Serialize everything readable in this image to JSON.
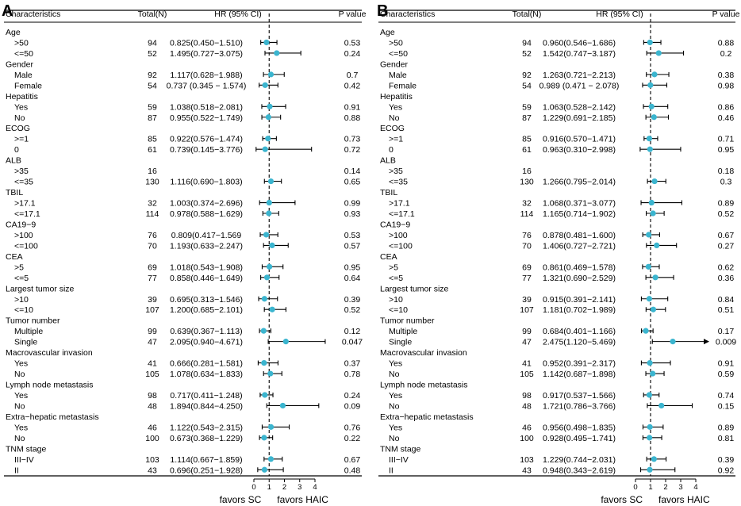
{
  "chart_data": [
    {
      "type": "forest",
      "panel_label": "A",
      "headers": {
        "characteristics": "Characteristics",
        "total": "Total(N)",
        "hr": "HR (95% CI)",
        "p": "P value"
      },
      "xlim": [
        0,
        4
      ],
      "reference_line": 1,
      "x_ticks": [
        {
          "value": 0,
          "label": "0"
        },
        {
          "value": 1,
          "label": "1"
        },
        {
          "value": 2,
          "label": "2"
        },
        {
          "value": 3,
          "label": "3"
        },
        {
          "value": 4,
          "label": "4"
        }
      ],
      "favor_left": "favors SC",
      "favor_right": "favors HAIC",
      "rows": [
        {
          "label": "Age",
          "header": true
        },
        {
          "label": ">50",
          "n": "94",
          "hr_text": "0.825(0.450−1.510)",
          "p": "0.53",
          "hr": 0.825,
          "lo": 0.45,
          "hi": 1.51
        },
        {
          "label": "<=50",
          "n": "52",
          "hr_text": "1.495(0.727−3.075)",
          "p": "0.24",
          "hr": 1.495,
          "lo": 0.727,
          "hi": 3.075
        },
        {
          "label": "Gender",
          "header": true
        },
        {
          "label": "Male",
          "n": "92",
          "hr_text": "1.117(0.628−1.988)",
          "p": "0.7",
          "hr": 1.117,
          "lo": 0.628,
          "hi": 1.988
        },
        {
          "label": "Female",
          "n": "54",
          "hr_text": "0.737 (0.345 − 1.574)",
          "p": "0.42",
          "hr": 0.737,
          "lo": 0.345,
          "hi": 1.574
        },
        {
          "label": "Hepatitis",
          "header": true
        },
        {
          "label": "Yes",
          "n": "59",
          "hr_text": "1.038(0.518−2.081)",
          "p": "0.91",
          "hr": 1.038,
          "lo": 0.518,
          "hi": 2.081
        },
        {
          "label": "No",
          "n": "87",
          "hr_text": "0.955(0.522−1.749)",
          "p": "0.88",
          "hr": 0.955,
          "lo": 0.522,
          "hi": 1.749
        },
        {
          "label": "ECOG",
          "header": true
        },
        {
          "label": ">=1",
          "n": "85",
          "hr_text": "0.922(0.576−1.474)",
          "p": "0.73",
          "hr": 0.922,
          "lo": 0.576,
          "hi": 1.474
        },
        {
          "label": "0",
          "n": "61",
          "hr_text": "0.739(0.145−3.776)",
          "p": "0.72",
          "hr": 0.739,
          "lo": 0.145,
          "hi": 3.776
        },
        {
          "label": "ALB",
          "header": true
        },
        {
          "label": ">35",
          "n": "16",
          "hr_text": "",
          "p": "0.14"
        },
        {
          "label": "<=35",
          "n": "130",
          "hr_text": "1.116(0.690−1.803)",
          "p": "0.65",
          "hr": 1.116,
          "lo": 0.69,
          "hi": 1.803
        },
        {
          "label": "TBIL",
          "header": true
        },
        {
          "label": ">17.1",
          "n": "32",
          "hr_text": "1.003(0.374−2.696)",
          "p": "0.99",
          "hr": 1.003,
          "lo": 0.374,
          "hi": 2.696
        },
        {
          "label": "<=17.1",
          "n": "114",
          "hr_text": "0.978(0.588−1.629)",
          "p": "0.93",
          "hr": 0.978,
          "lo": 0.588,
          "hi": 1.629
        },
        {
          "label": "CA19−9",
          "header": true
        },
        {
          "label": ">100",
          "n": "76",
          "hr_text": "0.809(0.417−1.569",
          "p": "0.53",
          "hr": 0.809,
          "lo": 0.417,
          "hi": 1.569
        },
        {
          "label": "<=100",
          "n": "70",
          "hr_text": "1.193(0.633−2.247)",
          "p": "0.57",
          "hr": 1.193,
          "lo": 0.633,
          "hi": 2.247
        },
        {
          "label": "CEA",
          "header": true
        },
        {
          "label": ">5",
          "n": "69",
          "hr_text": "1.018(0.543−1.908)",
          "p": "0.95",
          "hr": 1.018,
          "lo": 0.543,
          "hi": 1.908
        },
        {
          "label": "<=5",
          "n": "77",
          "hr_text": "0.858(0.446−1.649)",
          "p": "0.64",
          "hr": 0.858,
          "lo": 0.446,
          "hi": 1.649
        },
        {
          "label": "Largest tumor size",
          "header": true
        },
        {
          "label": ">10",
          "n": "39",
          "hr_text": "0.695(0.313−1.546)",
          "p": "0.39",
          "hr": 0.695,
          "lo": 0.313,
          "hi": 1.546
        },
        {
          "label": "<=10",
          "n": "107",
          "hr_text": "1.200(0.685−2.101)",
          "p": "0.52",
          "hr": 1.2,
          "lo": 0.685,
          "hi": 2.101
        },
        {
          "label": "Tumor number",
          "header": true
        },
        {
          "label": "Multiple",
          "n": "99",
          "hr_text": "0.639(0.367−1.113)",
          "p": "0.12",
          "hr": 0.639,
          "lo": 0.367,
          "hi": 1.113
        },
        {
          "label": "Single",
          "n": "47",
          "hr_text": "2.095(0.940−4.671)",
          "p": "0.047",
          "hr": 2.095,
          "lo": 0.94,
          "hi": 4.671
        },
        {
          "label": "Macrovascular invasion",
          "header": true
        },
        {
          "label": "Yes",
          "n": "41",
          "hr_text": "0.666(0.281−1.581)",
          "p": "0.37",
          "hr": 0.666,
          "lo": 0.281,
          "hi": 1.581
        },
        {
          "label": "No",
          "n": "105",
          "hr_text": "1.078(0.634−1.833)",
          "p": "0.78",
          "hr": 1.078,
          "lo": 0.634,
          "hi": 1.833
        },
        {
          "label": "Lymph node metastasis",
          "header": true
        },
        {
          "label": "Yes",
          "n": "98",
          "hr_text": "0.717(0.411−1.248)",
          "p": "0.24",
          "hr": 0.717,
          "lo": 0.411,
          "hi": 1.248
        },
        {
          "label": "No",
          "n": "48",
          "hr_text": "1.894(0.844−4.250)",
          "p": "0.09",
          "hr": 1.894,
          "lo": 0.844,
          "hi": 4.25
        },
        {
          "label": "Extra−hepatic metastasis",
          "header": true
        },
        {
          "label": "Yes",
          "n": "46",
          "hr_text": "1.122(0.543−2.315)",
          "p": "0.76",
          "hr": 1.122,
          "lo": 0.543,
          "hi": 2.315
        },
        {
          "label": "No",
          "n": "100",
          "hr_text": "0.673(0.368−1.229)",
          "p": "0.22",
          "hr": 0.673,
          "lo": 0.368,
          "hi": 1.229
        },
        {
          "label": "TNM stage",
          "header": true
        },
        {
          "label": "III−IV",
          "n": "103",
          "hr_text": "1.114(0.667−1.859)",
          "p": "0.67",
          "hr": 1.114,
          "lo": 0.667,
          "hi": 1.859
        },
        {
          "label": "II",
          "n": "43",
          "hr_text": "0.696(0.251−1.928)",
          "p": "0.48",
          "hr": 0.696,
          "lo": 0.251,
          "hi": 1.928
        }
      ]
    },
    {
      "type": "forest",
      "panel_label": "B",
      "headers": {
        "characteristics": "Characteristics",
        "total": "Total(N)",
        "hr": "HR (95% CI)",
        "p": "P value"
      },
      "xlim": [
        0,
        4
      ],
      "reference_line": 1,
      "x_ticks": [
        {
          "value": 0,
          "label": "0"
        },
        {
          "value": 1,
          "label": "1"
        },
        {
          "value": 2,
          "label": "2"
        },
        {
          "value": 3,
          "label": "3"
        },
        {
          "value": 4,
          "label": "4"
        }
      ],
      "favor_left": "favors SC",
      "favor_right": "favors HAIC",
      "rows": [
        {
          "label": "Age",
          "header": true
        },
        {
          "label": ">50",
          "n": "94",
          "hr_text": "0.960(0.546−1.686)",
          "p": "0.88",
          "hr": 0.96,
          "lo": 0.546,
          "hi": 1.686
        },
        {
          "label": "<=50",
          "n": "52",
          "hr_text": "1.542(0.747−3.187)",
          "p": "0.2",
          "hr": 1.542,
          "lo": 0.747,
          "hi": 3.187
        },
        {
          "label": "Gender",
          "header": true
        },
        {
          "label": "Male",
          "n": "92",
          "hr_text": "1.263(0.721−2.213)",
          "p": "0.38",
          "hr": 1.263,
          "lo": 0.721,
          "hi": 2.213
        },
        {
          "label": "Female",
          "n": "54",
          "hr_text": "0.989 (0.471 − 2.078)",
          "p": "0.98",
          "hr": 0.989,
          "lo": 0.471,
          "hi": 2.078
        },
        {
          "label": "Hepatitis",
          "header": true
        },
        {
          "label": "Yes",
          "n": "59",
          "hr_text": "1.063(0.528−2.142)",
          "p": "0.86",
          "hr": 1.063,
          "lo": 0.528,
          "hi": 2.142
        },
        {
          "label": "No",
          "n": "87",
          "hr_text": "1.229(0.691−2.185)",
          "p": "0.46",
          "hr": 1.229,
          "lo": 0.691,
          "hi": 2.185
        },
        {
          "label": "ECOG",
          "header": true
        },
        {
          "label": ">=1",
          "n": "85",
          "hr_text": "0.916(0.570−1.471)",
          "p": "0.71",
          "hr": 0.916,
          "lo": 0.57,
          "hi": 1.471
        },
        {
          "label": "0",
          "n": "61",
          "hr_text": "0.963(0.310−2.998)",
          "p": "0.95",
          "hr": 0.963,
          "lo": 0.31,
          "hi": 2.998
        },
        {
          "label": "ALB",
          "header": true
        },
        {
          "label": ">35",
          "n": "16",
          "hr_text": "",
          "p": "0.18"
        },
        {
          "label": "<=35",
          "n": "130",
          "hr_text": "1.266(0.795−2.014)",
          "p": "0.3",
          "hr": 1.266,
          "lo": 0.795,
          "hi": 2.014
        },
        {
          "label": "TBIL",
          "header": true
        },
        {
          "label": ">17.1",
          "n": "32",
          "hr_text": "1.068(0.371−3.077)",
          "p": "0.89",
          "hr": 1.068,
          "lo": 0.371,
          "hi": 3.077
        },
        {
          "label": "<=17.1",
          "n": "114",
          "hr_text": "1.165(0.714−1.902)",
          "p": "0.52",
          "hr": 1.165,
          "lo": 0.714,
          "hi": 1.902
        },
        {
          "label": "CA19−9",
          "header": true
        },
        {
          "label": ">100",
          "n": "76",
          "hr_text": "0.878(0.481−1.600)",
          "p": "0.67",
          "hr": 0.878,
          "lo": 0.481,
          "hi": 1.6
        },
        {
          "label": "<=100",
          "n": "70",
          "hr_text": "1.406(0.727−2.721)",
          "p": "0.27",
          "hr": 1.406,
          "lo": 0.727,
          "hi": 2.721
        },
        {
          "label": "CEA",
          "header": true
        },
        {
          "label": ">5",
          "n": "69",
          "hr_text": "0.861(0.469−1.578)",
          "p": "0.62",
          "hr": 0.861,
          "lo": 0.469,
          "hi": 1.578
        },
        {
          "label": "<=5",
          "n": "77",
          "hr_text": "1.321(0.690−2.529)",
          "p": "0.36",
          "hr": 1.321,
          "lo": 0.69,
          "hi": 2.529
        },
        {
          "label": "Largest tumor size",
          "header": true
        },
        {
          "label": ">10",
          "n": "39",
          "hr_text": "0.915(0.391−2.141)",
          "p": "0.84",
          "hr": 0.915,
          "lo": 0.391,
          "hi": 2.141
        },
        {
          "label": "<=10",
          "n": "107",
          "hr_text": "1.181(0.702−1.989)",
          "p": "0.51",
          "hr": 1.181,
          "lo": 0.702,
          "hi": 1.989
        },
        {
          "label": "Tumor number",
          "header": true
        },
        {
          "label": "Multiple",
          "n": "99",
          "hr_text": "0.684(0.401−1.166)",
          "p": "0.17",
          "hr": 0.684,
          "lo": 0.401,
          "hi": 1.166
        },
        {
          "label": "Single",
          "n": "47",
          "hr_text": "2.475(1.120−5.469)",
          "p": "0.009",
          "hr": 2.475,
          "lo": 1.12,
          "hi": 5.469
        },
        {
          "label": "Macrovascular invasion",
          "header": true
        },
        {
          "label": "Yes",
          "n": "41",
          "hr_text": "0.952(0.391−2.317)",
          "p": "0.91",
          "hr": 0.952,
          "lo": 0.391,
          "hi": 2.317
        },
        {
          "label": "No",
          "n": "105",
          "hr_text": "1.142(0.687−1.898)",
          "p": "0.59",
          "hr": 1.142,
          "lo": 0.687,
          "hi": 1.898
        },
        {
          "label": "Lymph node metastasis",
          "header": true
        },
        {
          "label": "Yes",
          "n": "98",
          "hr_text": "0.917(0.537−1.566)",
          "p": "0.74",
          "hr": 0.917,
          "lo": 0.537,
          "hi": 1.566
        },
        {
          "label": "No",
          "n": "48",
          "hr_text": "1.721(0.786−3.766)",
          "p": "0.15",
          "hr": 1.721,
          "lo": 0.786,
          "hi": 3.766
        },
        {
          "label": "Extra−hepatic metastasis",
          "header": true
        },
        {
          "label": "Yes",
          "n": "46",
          "hr_text": "0.956(0.498−1.835)",
          "p": "0.89",
          "hr": 0.956,
          "lo": 0.498,
          "hi": 1.835
        },
        {
          "label": "No",
          "n": "100",
          "hr_text": "0.928(0.495−1.741)",
          "p": "0.81",
          "hr": 0.928,
          "lo": 0.495,
          "hi": 1.741
        },
        {
          "label": "TNM stage",
          "header": true
        },
        {
          "label": "III−IV",
          "n": "103",
          "hr_text": "1.229(0.744−2.031)",
          "p": "0.39",
          "hr": 1.229,
          "lo": 0.744,
          "hi": 2.031
        },
        {
          "label": "II",
          "n": "43",
          "hr_text": "0.948(0.343−2.619)",
          "p": "0.92",
          "hr": 0.948,
          "lo": 0.343,
          "hi": 2.619
        }
      ]
    }
  ],
  "colors": {
    "point": "#3bb5cf",
    "line": "#000000",
    "text": "#000000"
  }
}
